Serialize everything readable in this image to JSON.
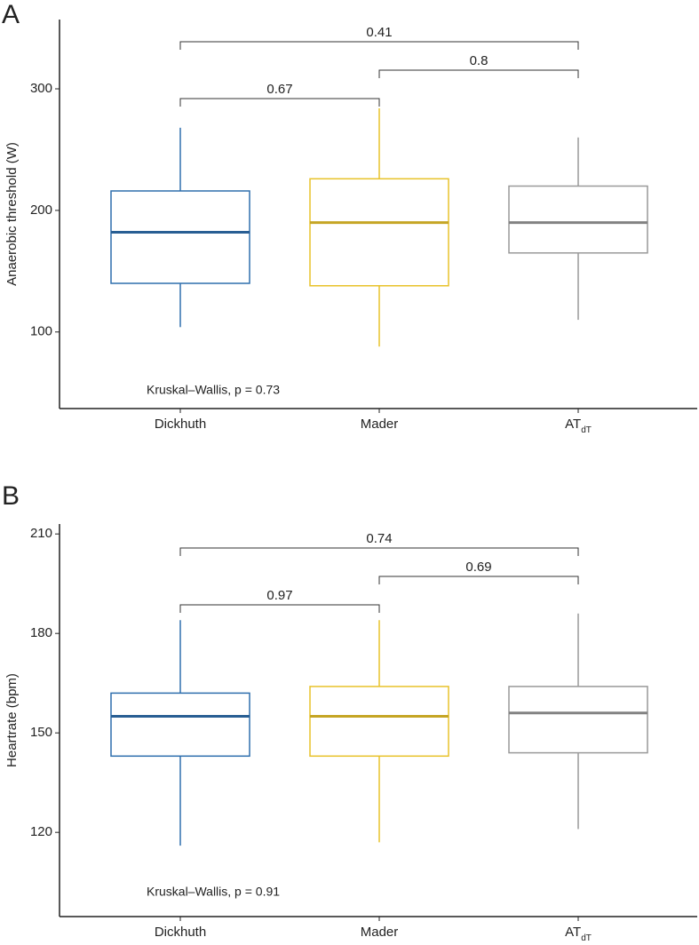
{
  "chart_data": [
    {
      "type": "box",
      "panel_label": "A",
      "y_label": "Anaerobic threshold (W)",
      "categories": [
        "Dickhuth",
        "Mader",
        "AT"
      ],
      "category_subscripts": [
        null,
        null,
        "dT"
      ],
      "colors": [
        "#2f6fad",
        "#e8c22a",
        "#999999"
      ],
      "boxes": [
        {
          "min": 104,
          "q1": 140,
          "median": 182,
          "q3": 216,
          "max": 268
        },
        {
          "min": 88,
          "q1": 138,
          "median": 190,
          "q3": 226,
          "max": 284
        },
        {
          "min": 110,
          "q1": 165,
          "median": 190,
          "q3": 220,
          "max": 260
        }
      ],
      "comparisons": [
        0.41,
        0.8,
        0.67
      ],
      "annotation": "Kruskal–Wallis, p = 0.73",
      "ylim": [
        37,
        357
      ],
      "yticks": [
        100,
        200,
        300
      ]
    },
    {
      "type": "box",
      "panel_label": "B",
      "y_label": "Heartrate (bpm)",
      "categories": [
        "Dickhuth",
        "Mader",
        "AT"
      ],
      "category_subscripts": [
        null,
        null,
        "dT"
      ],
      "colors": [
        "#2f6fad",
        "#e8c22a",
        "#999999"
      ],
      "boxes": [
        {
          "min": 116,
          "q1": 143,
          "median": 155,
          "q3": 162,
          "max": 184
        },
        {
          "min": 117,
          "q1": 143,
          "median": 155,
          "q3": 164,
          "max": 184
        },
        {
          "min": 121,
          "q1": 144,
          "median": 156,
          "q3": 164,
          "max": 186
        }
      ],
      "comparisons": [
        0.74,
        0.69,
        0.97
      ],
      "annotation": "Kruskal–Wallis, p = 0.91",
      "ylim": [
        94.6,
        213
      ],
      "yticks": [
        120,
        150,
        180,
        210
      ]
    }
  ]
}
